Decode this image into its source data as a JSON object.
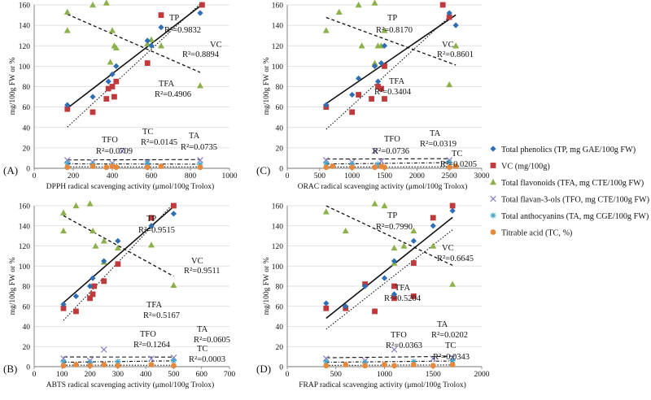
{
  "chart_data": [
    {
      "type": "scatter",
      "panel_label": "(A)",
      "xlabel": "DPPH radical scavenging activity (μmol/100g Trolox)",
      "ylabel": "mg/100g FW or %",
      "xlim": [
        0,
        1000
      ],
      "ylim": [
        0,
        160
      ],
      "xticks": [
        0,
        200,
        400,
        600,
        800,
        1000
      ],
      "yticks": [
        0,
        20,
        40,
        60,
        80,
        100,
        120,
        140,
        160
      ],
      "series": {
        "TP": [
          [
            170,
            62
          ],
          [
            300,
            70
          ],
          [
            380,
            85
          ],
          [
            400,
            92
          ],
          [
            420,
            100
          ],
          [
            580,
            125
          ],
          [
            600,
            120
          ],
          [
            650,
            138
          ],
          [
            850,
            152
          ]
        ],
        "VC": [
          [
            170,
            58
          ],
          [
            300,
            55
          ],
          [
            370,
            68
          ],
          [
            380,
            78
          ],
          [
            400,
            80
          ],
          [
            410,
            70
          ],
          [
            420,
            85
          ],
          [
            580,
            103
          ],
          [
            650,
            150
          ],
          [
            860,
            160
          ]
        ],
        "TFA": [
          [
            170,
            153
          ],
          [
            170,
            135
          ],
          [
            300,
            160
          ],
          [
            370,
            162
          ],
          [
            390,
            104
          ],
          [
            400,
            135
          ],
          [
            410,
            120
          ],
          [
            420,
            118
          ],
          [
            580,
            122
          ],
          [
            600,
            126
          ],
          [
            650,
            120
          ],
          [
            850,
            81
          ]
        ],
        "TFO": [
          [
            170,
            8
          ],
          [
            300,
            6
          ],
          [
            400,
            5
          ],
          [
            450,
            17
          ],
          [
            580,
            6
          ],
          [
            850,
            8
          ]
        ],
        "TA": [
          [
            170,
            5
          ],
          [
            300,
            4
          ],
          [
            400,
            3
          ],
          [
            580,
            5
          ],
          [
            850,
            4
          ]
        ],
        "TC": [
          [
            170,
            1
          ],
          [
            300,
            2
          ],
          [
            370,
            1
          ],
          [
            400,
            2
          ],
          [
            420,
            1
          ],
          [
            580,
            1
          ],
          [
            650,
            2
          ],
          [
            850,
            1
          ]
        ]
      },
      "annotations": [
        {
          "name": "TP",
          "label": "TP",
          "r2": "R²=0.9832"
        },
        {
          "name": "VC",
          "label": "VC",
          "r2": "R²=0.8894"
        },
        {
          "name": "TFA",
          "label": "TFA",
          "r2": "R²=0.4906"
        },
        {
          "name": "TFO",
          "label": "TFO",
          "r2": "R²=0.0709"
        },
        {
          "name": "TC",
          "label": "TC",
          "r2": "R²=0.0145"
        },
        {
          "name": "TA",
          "label": "TA",
          "r2": "R²=0.0735"
        }
      ]
    },
    {
      "type": "scatter",
      "panel_label": "(C)",
      "xlabel": "ORAC radical scavenging activity (μmol/100g Trolox)",
      "ylabel": "mg/100g FW or %",
      "xlim": [
        0,
        3000
      ],
      "ylim": [
        0,
        160
      ],
      "xticks": [
        0,
        500,
        1000,
        1500,
        2000,
        2500,
        3000
      ],
      "yticks": [
        0,
        20,
        40,
        60,
        80,
        100,
        120,
        140,
        160
      ],
      "series": {
        "TP": [
          [
            600,
            62
          ],
          [
            1000,
            72
          ],
          [
            1100,
            88
          ],
          [
            1350,
            100
          ],
          [
            1400,
            85
          ],
          [
            1450,
            103
          ],
          [
            1500,
            120
          ],
          [
            2500,
            152
          ],
          [
            2600,
            140
          ]
        ],
        "VC": [
          [
            600,
            60
          ],
          [
            1000,
            55
          ],
          [
            1100,
            72
          ],
          [
            1300,
            68
          ],
          [
            1400,
            80
          ],
          [
            1450,
            78
          ],
          [
            1500,
            68
          ],
          [
            1500,
            100
          ],
          [
            2400,
            160
          ],
          [
            2500,
            148
          ]
        ],
        "TFA": [
          [
            600,
            135
          ],
          [
            800,
            153
          ],
          [
            1100,
            160
          ],
          [
            1150,
            120
          ],
          [
            1350,
            162
          ],
          [
            1400,
            120
          ],
          [
            1450,
            120
          ],
          [
            1500,
            135
          ],
          [
            2500,
            82
          ],
          [
            2600,
            120
          ],
          [
            1350,
            103
          ]
        ],
        "TFO": [
          [
            600,
            8
          ],
          [
            1000,
            6
          ],
          [
            1350,
            17
          ],
          [
            1450,
            7
          ],
          [
            2500,
            8
          ]
        ],
        "TA": [
          [
            600,
            5
          ],
          [
            1000,
            4
          ],
          [
            1400,
            4
          ],
          [
            2500,
            6
          ]
        ],
        "TC": [
          [
            600,
            1
          ],
          [
            700,
            2
          ],
          [
            1000,
            1
          ],
          [
            1350,
            1
          ],
          [
            1450,
            2
          ],
          [
            1500,
            1
          ],
          [
            2500,
            1
          ],
          [
            2600,
            2
          ]
        ]
      },
      "annotations": [
        {
          "name": "TP",
          "label": "TP",
          "r2": "R²=0.8170"
        },
        {
          "name": "VC",
          "label": "VC",
          "r2": "R²=0.8601"
        },
        {
          "name": "TFA",
          "label": "TFA",
          "r2": "R²=0.3404"
        },
        {
          "name": "TFO",
          "label": "TFO",
          "r2": "R²=0.0736"
        },
        {
          "name": "TA",
          "label": "TA",
          "r2": "R²=0.0319"
        },
        {
          "name": "TC",
          "label": "TC",
          "r2": "R²=0.0205"
        }
      ]
    },
    {
      "type": "scatter",
      "panel_label": "(B)",
      "xlabel": "ABTS radical scavenging activity (μmol/100g Trolox)",
      "ylabel": "mg/100g FW or %",
      "xlim": [
        0,
        700
      ],
      "ylim": [
        0,
        160
      ],
      "xticks": [
        0,
        100,
        200,
        300,
        400,
        500,
        600,
        700
      ],
      "yticks": [
        0,
        20,
        40,
        60,
        80,
        100,
        120,
        140,
        160
      ],
      "series": {
        "TP": [
          [
            105,
            62
          ],
          [
            150,
            70
          ],
          [
            200,
            80
          ],
          [
            210,
            88
          ],
          [
            250,
            105
          ],
          [
            300,
            125
          ],
          [
            420,
            140
          ],
          [
            500,
            152
          ]
        ],
        "VC": [
          [
            105,
            58
          ],
          [
            150,
            55
          ],
          [
            200,
            68
          ],
          [
            210,
            72
          ],
          [
            215,
            80
          ],
          [
            250,
            85
          ],
          [
            300,
            102
          ],
          [
            420,
            148
          ],
          [
            500,
            160
          ]
        ],
        "TFA": [
          [
            105,
            153
          ],
          [
            105,
            135
          ],
          [
            150,
            160
          ],
          [
            200,
            162
          ],
          [
            210,
            135
          ],
          [
            220,
            120
          ],
          [
            250,
            125
          ],
          [
            300,
            118
          ],
          [
            420,
            121
          ],
          [
            500,
            81
          ],
          [
            250,
            104
          ]
        ],
        "TFO": [
          [
            105,
            8
          ],
          [
            200,
            6
          ],
          [
            250,
            17
          ],
          [
            420,
            8
          ],
          [
            500,
            9
          ]
        ],
        "TA": [
          [
            105,
            5
          ],
          [
            200,
            4
          ],
          [
            300,
            5
          ],
          [
            500,
            6
          ]
        ],
        "TC": [
          [
            105,
            1
          ],
          [
            150,
            2
          ],
          [
            200,
            1
          ],
          [
            250,
            2
          ],
          [
            300,
            1
          ],
          [
            420,
            2
          ],
          [
            500,
            1
          ]
        ]
      },
      "annotations": [
        {
          "name": "TP",
          "label": "TP",
          "r2": "R²=0.9515"
        },
        {
          "name": "VC",
          "label": "VC",
          "r2": "R²=0.9511"
        },
        {
          "name": "TFA",
          "label": "TFA",
          "r2": "R²=0.5167"
        },
        {
          "name": "TFO",
          "label": "TFO",
          "r2": "R²=0.1264"
        },
        {
          "name": "TA",
          "label": "TA",
          "r2": "R²=0.0605"
        },
        {
          "name": "TC",
          "label": "TC",
          "r2": "R²=0.0003"
        }
      ]
    },
    {
      "type": "scatter",
      "panel_label": "(D)",
      "xlabel": "FRAP radical scavenging activity (μmol/100g Trolox)",
      "ylabel": "mg/100g FW or %",
      "xlim": [
        0,
        2000
      ],
      "ylim": [
        0,
        160
      ],
      "xticks": [
        0,
        500,
        1000,
        1500,
        2000
      ],
      "yticks": [
        0,
        20,
        40,
        60,
        80,
        100,
        120,
        140,
        160
      ],
      "series": {
        "TP": [
          [
            400,
            63
          ],
          [
            600,
            60
          ],
          [
            800,
            80
          ],
          [
            1000,
            88
          ],
          [
            1100,
            105
          ],
          [
            1300,
            125
          ],
          [
            1500,
            140
          ],
          [
            1700,
            155
          ],
          [
            1100,
            72
          ]
        ],
        "VC": [
          [
            400,
            58
          ],
          [
            600,
            58
          ],
          [
            800,
            82
          ],
          [
            900,
            55
          ],
          [
            1100,
            68
          ],
          [
            1100,
            80
          ],
          [
            1300,
            70
          ],
          [
            1300,
            103
          ],
          [
            1500,
            148
          ],
          [
            1700,
            160
          ]
        ],
        "TFA": [
          [
            400,
            154
          ],
          [
            600,
            135
          ],
          [
            900,
            162
          ],
          [
            1000,
            160
          ],
          [
            1100,
            118
          ],
          [
            1200,
            120
          ],
          [
            1300,
            135
          ],
          [
            1500,
            120
          ],
          [
            1700,
            82
          ],
          [
            1100,
            103
          ]
        ],
        "TFO": [
          [
            400,
            8
          ],
          [
            800,
            6
          ],
          [
            1100,
            17
          ],
          [
            1500,
            8
          ],
          [
            1700,
            9
          ]
        ],
        "TA": [
          [
            400,
            5
          ],
          [
            800,
            4
          ],
          [
            1300,
            5
          ],
          [
            1700,
            6
          ]
        ],
        "TC": [
          [
            400,
            1
          ],
          [
            600,
            2
          ],
          [
            800,
            1
          ],
          [
            1000,
            2
          ],
          [
            1100,
            1
          ],
          [
            1300,
            2
          ],
          [
            1500,
            1
          ],
          [
            1700,
            2
          ]
        ]
      },
      "annotations": [
        {
          "name": "TP",
          "label": "TP",
          "r2": "R²=0.7990"
        },
        {
          "name": "VC",
          "label": "VC",
          "r2": "R²=0.6645"
        },
        {
          "name": "TFA",
          "label": "TFA",
          "r2": "R²=0.5204"
        },
        {
          "name": "TFO",
          "label": "TFO",
          "r2": "R²=0.0363"
        },
        {
          "name": "TA",
          "label": "TA",
          "r2": "R²=0.0202"
        },
        {
          "name": "TC",
          "label": "TC",
          "r2": "R²=0.0343"
        }
      ]
    }
  ],
  "legend": {
    "placement": "right",
    "items": [
      {
        "key": "TP",
        "label": "Total phenolics (TP, mg GAE/100g FW)",
        "marker": "diamond",
        "color": "#2E6EB5"
      },
      {
        "key": "VC",
        "label": "VC (mg/100g)",
        "marker": "square",
        "color": "#C0393B"
      },
      {
        "key": "TFA",
        "label": "Total flavonoids (TFA, mg CTE/100g FW)",
        "marker": "triangle",
        "color": "#8DB14A"
      },
      {
        "key": "TFO",
        "label": "Total flavan-3-ols (TFO, mg CTE/100g FW)",
        "marker": "x",
        "color": "#8B7BBF"
      },
      {
        "key": "TA",
        "label": "Total anthocyanins (TA, mg CGE/100g FW)",
        "marker": "star",
        "color": "#3FA3C9"
      },
      {
        "key": "TC",
        "label": "Titrable acid (TC, %)",
        "marker": "circle",
        "color": "#E8883A"
      }
    ]
  }
}
